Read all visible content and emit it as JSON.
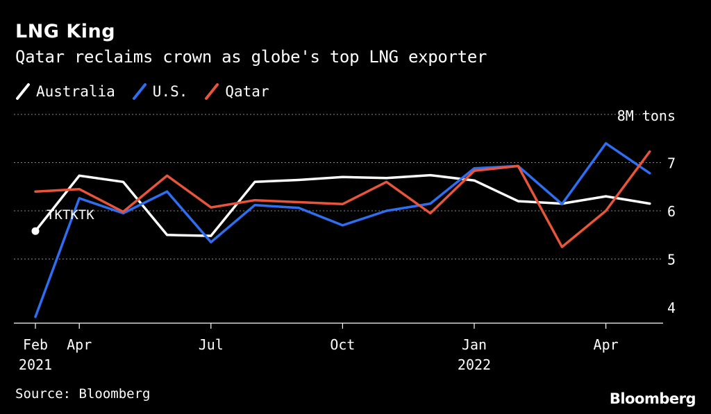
{
  "title": "LNG King",
  "subtitle": "Qatar reclaims crown as globe's top LNG exporter",
  "source": "Source: Bloomberg",
  "logo": "Bloomberg",
  "colors": {
    "background": "#000000",
    "text": "#ffffff",
    "australia": "#ffffff",
    "us": "#2e6ff2",
    "qatar": "#e8553a",
    "grid": "#8a8a8a"
  },
  "chart_data": {
    "type": "line",
    "title": "LNG King",
    "ylabel": "",
    "y_unit_label": "8M tons",
    "ylim": [
      3.7,
      8
    ],
    "yticks": [
      4,
      5,
      6,
      7
    ],
    "xlim": [
      0,
      14.9
    ],
    "x": [
      0,
      1,
      2,
      3,
      4,
      5,
      6,
      7,
      8,
      9,
      10,
      11,
      12,
      13,
      14
    ],
    "x_ticks": [
      {
        "pos": 0,
        "line1": "Feb",
        "line2": "2021"
      },
      {
        "pos": 1,
        "line1": "Apr",
        "line2": ""
      },
      {
        "pos": 4,
        "line1": "Jul",
        "line2": ""
      },
      {
        "pos": 7,
        "line1": "Oct",
        "line2": ""
      },
      {
        "pos": 10,
        "line1": "Jan",
        "line2": "2022"
      },
      {
        "pos": 13,
        "line1": "Apr",
        "line2": ""
      }
    ],
    "series": [
      {
        "name": "Australia",
        "color": "#ffffff",
        "values": [
          5.58,
          6.73,
          6.6,
          5.5,
          5.48,
          6.6,
          6.64,
          6.7,
          6.68,
          6.74,
          6.63,
          6.2,
          6.15,
          6.3,
          6.15
        ]
      },
      {
        "name": "U.S.",
        "color": "#2e6ff2",
        "values": [
          3.8,
          6.26,
          5.95,
          6.4,
          5.35,
          6.12,
          6.06,
          5.7,
          6.0,
          6.15,
          6.88,
          6.93,
          6.14,
          7.4,
          6.78
        ]
      },
      {
        "name": "Qatar",
        "color": "#e8553a",
        "values": [
          6.4,
          6.45,
          5.98,
          6.73,
          6.07,
          6.22,
          6.18,
          6.14,
          6.6,
          5.95,
          6.83,
          6.93,
          5.25,
          6.0,
          7.23
        ]
      }
    ],
    "annotations": [
      {
        "text": "TKTKTK",
        "series": "Australia",
        "point_index": 0
      }
    ]
  }
}
